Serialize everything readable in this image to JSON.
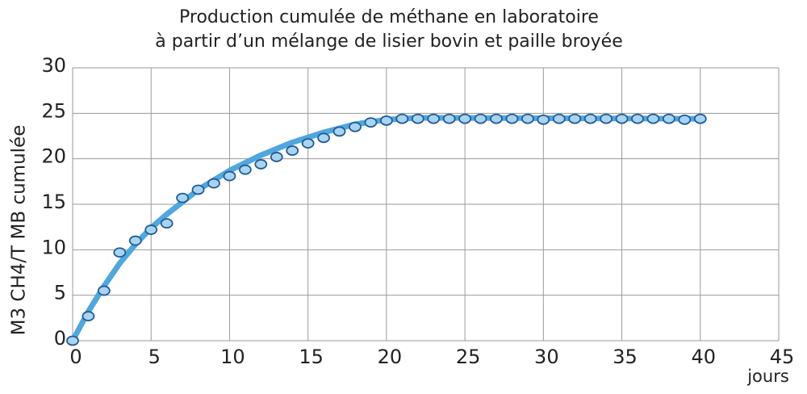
{
  "chart_data": {
    "type": "scatter",
    "title": [
      "Production cumulée de méthane en laboratoire",
      "à partir d’un mélange de lisier bovin et paille broyée"
    ],
    "y_label": "M3 CH4/T MB cumulée",
    "x_label": "jours",
    "xlim": [
      0,
      45
    ],
    "ylim": [
      0,
      30
    ],
    "xticks": [
      0,
      5,
      10,
      15,
      20,
      25,
      30,
      35,
      40,
      45
    ],
    "yticks": [
      0,
      5,
      10,
      15,
      20,
      25,
      30
    ],
    "grid": true,
    "points": {
      "color": "#a9d4f0",
      "x": [
        0,
        1,
        2,
        3,
        4,
        5,
        6,
        7,
        8,
        9,
        10,
        11,
        12,
        13,
        14,
        15,
        16,
        17,
        18,
        19,
        20,
        21,
        22,
        23,
        24,
        25,
        26,
        27,
        28,
        29,
        30,
        31,
        32,
        33,
        34,
        35,
        36,
        37,
        38,
        39,
        40
      ],
      "values": [
        0,
        2.7,
        5.5,
        9.7,
        11.0,
        12.2,
        12.9,
        15.7,
        16.6,
        17.3,
        18.1,
        18.8,
        19.4,
        20.2,
        20.9,
        21.7,
        22.3,
        23.0,
        23.5,
        24.0,
        24.2,
        24.4,
        24.4,
        24.4,
        24.4,
        24.4,
        24.4,
        24.4,
        24.4,
        24.4,
        24.3,
        24.4,
        24.4,
        24.4,
        24.4,
        24.4,
        24.4,
        24.4,
        24.4,
        24.3,
        24.4
      ]
    },
    "fit": {
      "color": "#4fa7df",
      "x": [
        0,
        1,
        2,
        3,
        4,
        5,
        6,
        8,
        10,
        12,
        14,
        16,
        18,
        20,
        22,
        24,
        40
      ],
      "values": [
        0,
        3.2,
        6.0,
        8.5,
        10.6,
        12.4,
        13.9,
        16.6,
        18.7,
        20.4,
        21.8,
        22.9,
        23.8,
        24.3,
        24.5,
        24.5,
        24.4
      ]
    }
  }
}
